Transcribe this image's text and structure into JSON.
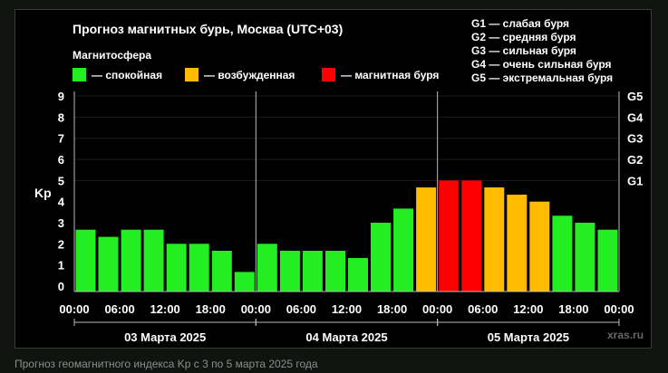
{
  "chart_data": {
    "type": "bar",
    "title": "Прогноз магнитных бурь, Москва (UTC+03)",
    "legend_title": "Магнитосфера",
    "legend": [
      {
        "label": "— спокойная",
        "color": "#22ee22"
      },
      {
        "label": "— возбужденная",
        "color": "#ffbb00"
      },
      {
        "label": "— магнитная буря",
        "color": "#ff0000"
      }
    ],
    "storm_scale": [
      "G1 — слабая буря",
      "G2 — средняя буря",
      "G3 — сильная буря",
      "G4 — очень сильная буря",
      "G5 — экстремальная буря"
    ],
    "ylabel": "Kp",
    "ylim": [
      0,
      9
    ],
    "yticks": [
      "0",
      "1",
      "2",
      "3",
      "4",
      "5",
      "6",
      "7",
      "8",
      "9"
    ],
    "right_axis": [
      {
        "label": "G1",
        "kp": 5
      },
      {
        "label": "G2",
        "kp": 6
      },
      {
        "label": "G3",
        "kp": 7
      },
      {
        "label": "G4",
        "kp": 8
      },
      {
        "label": "G5",
        "kp": 9
      }
    ],
    "xticks": [
      "00:00",
      "06:00",
      "12:00",
      "18:00",
      "00:00",
      "06:00",
      "12:00",
      "18:00",
      "00:00",
      "06:00",
      "12:00",
      "18:00",
      "00:00"
    ],
    "days": [
      "03 Марта 2025",
      "04 Марта 2025",
      "05 Марта 2025"
    ],
    "values": [
      2.67,
      2.33,
      2.67,
      2.67,
      2.0,
      2.0,
      1.67,
      0.67,
      2.0,
      1.67,
      1.67,
      1.67,
      1.33,
      3.0,
      3.67,
      4.67,
      5.0,
      5.0,
      4.67,
      4.33,
      4.0,
      3.33,
      3.0,
      2.67
    ],
    "colors": [
      "#22ee22",
      "#22ee22",
      "#22ee22",
      "#22ee22",
      "#22ee22",
      "#22ee22",
      "#22ee22",
      "#22ee22",
      "#22ee22",
      "#22ee22",
      "#22ee22",
      "#22ee22",
      "#22ee22",
      "#22ee22",
      "#22ee22",
      "#ffbb00",
      "#ff0000",
      "#ff0000",
      "#ffbb00",
      "#ffbb00",
      "#ffbb00",
      "#22ee22",
      "#22ee22",
      "#22ee22"
    ]
  },
  "watermark": "xras.ru",
  "caption": "Прогноз геомагнитного индекса Kp с 3 по 5 марта 2025 года"
}
